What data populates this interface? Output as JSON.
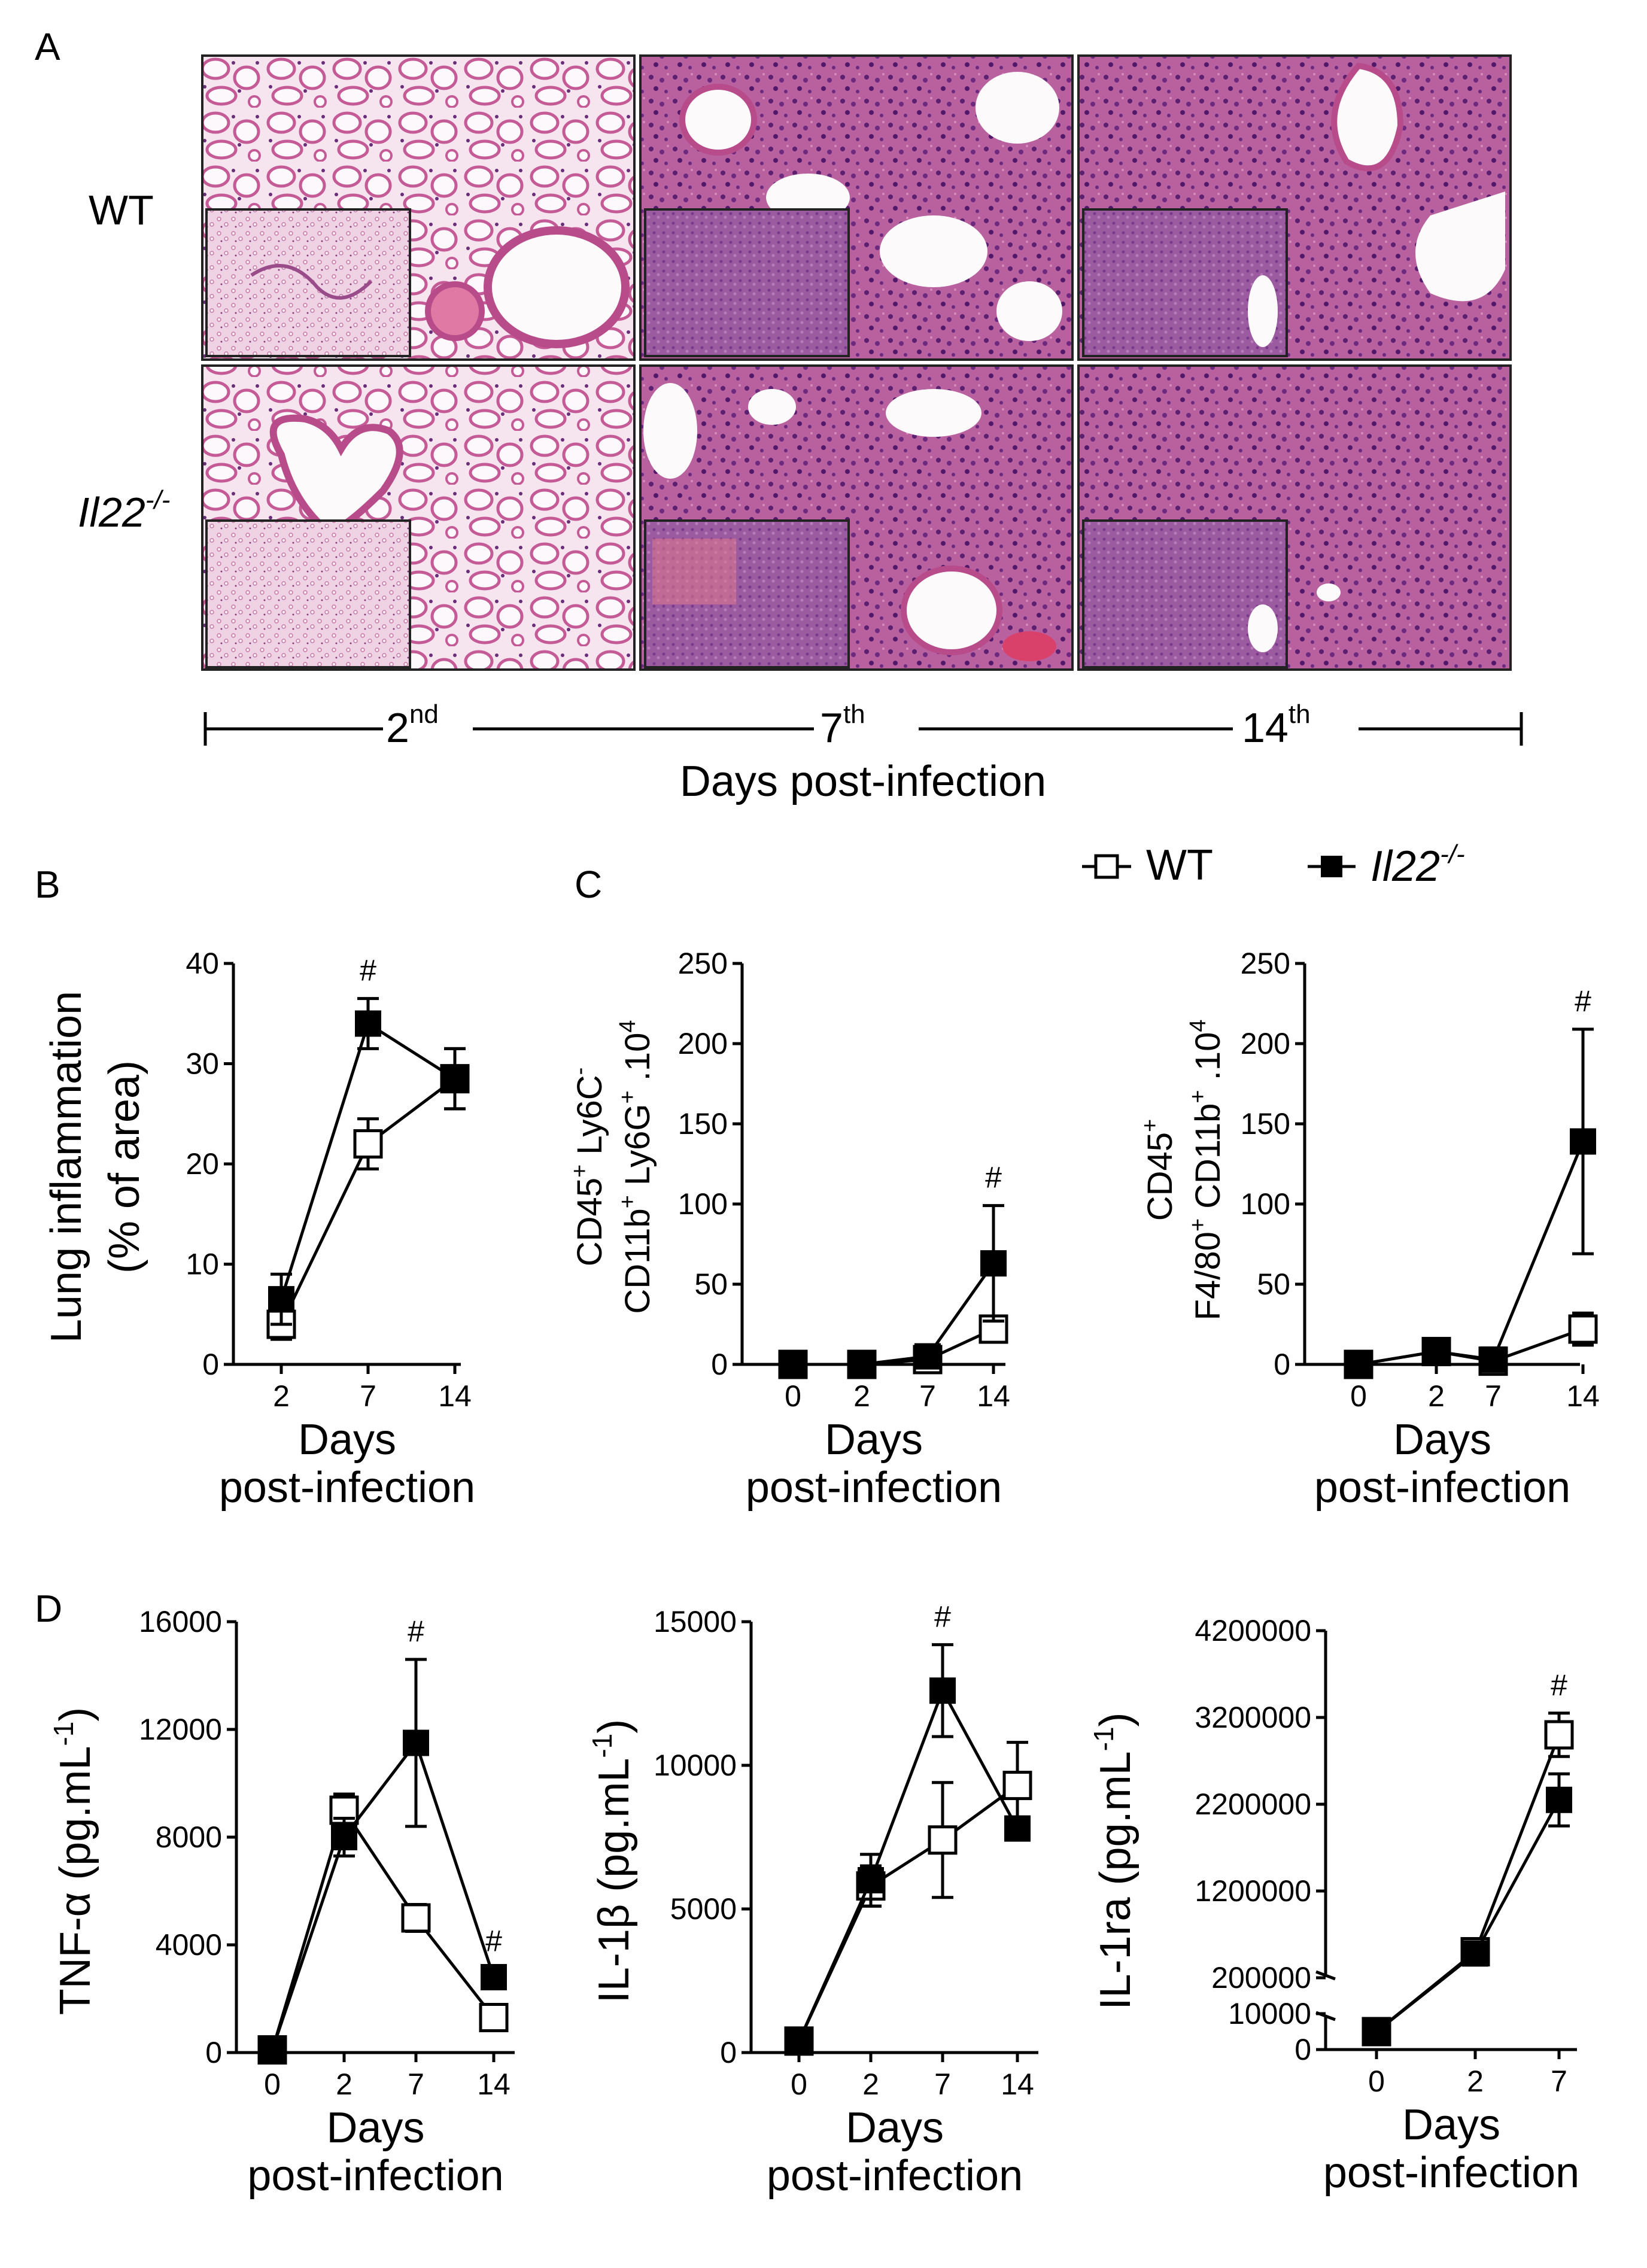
{
  "panel_a": {
    "label": "A",
    "rows": [
      "WT",
      "Il22-/-"
    ],
    "row_wt": "WT",
    "row_ko_base": "Il22",
    "row_ko_sup": "-/-",
    "timeline": [
      {
        "base": "2",
        "sup": "nd"
      },
      {
        "base": "7",
        "sup": "th"
      },
      {
        "base": "14",
        "sup": "th"
      }
    ],
    "timeline_title": "Days post-infection"
  },
  "legend": {
    "wt": "WT",
    "ko_base": "Il22",
    "ko_sup": "-/-"
  },
  "panel_labels": {
    "b": "B",
    "c": "C",
    "d": "D"
  },
  "xlabel_line1": "Days",
  "xlabel_line2": "post-infection",
  "colors": {
    "tissue_pink": "#e6a9c8",
    "tissue_purple": "#8b3f8a",
    "marker": "#000000"
  },
  "chart_data": [
    {
      "id": "b",
      "type": "line",
      "ylabel_line1": "Lung inflammation",
      "ylabel_line2": "(% of area)",
      "categories": [
        "2",
        "7",
        "14"
      ],
      "ylim": [
        0,
        40
      ],
      "yticks": [
        "0",
        "10",
        "20",
        "30",
        "40"
      ],
      "series": [
        {
          "name": "WT",
          "values": [
            4,
            22,
            28.5
          ],
          "errors": [
            1.5,
            2.5,
            3
          ]
        },
        {
          "name": "Il22-/-",
          "values": [
            6.5,
            34,
            28.5
          ],
          "errors": [
            2.5,
            2.5,
            3
          ]
        }
      ],
      "annotations": [
        {
          "text": "#",
          "category": "7"
        }
      ]
    },
    {
      "id": "c1",
      "type": "line",
      "ylabel_line1": "CD45+ Ly6C-",
      "ylabel_line2": "CD11b+ Ly6G+ .104",
      "categories": [
        "0",
        "2",
        "7",
        "14"
      ],
      "ylim": [
        0,
        250
      ],
      "yticks": [
        "0",
        "50",
        "100",
        "150",
        "200",
        "250"
      ],
      "series": [
        {
          "name": "WT",
          "values": [
            0,
            0,
            3,
            22
          ],
          "errors": [
            0,
            0,
            2,
            5
          ]
        },
        {
          "name": "Il22-/-",
          "values": [
            0,
            0,
            5,
            63
          ],
          "errors": [
            0,
            0,
            2,
            36
          ]
        }
      ],
      "annotations": [
        {
          "text": "#",
          "category": "14"
        }
      ]
    },
    {
      "id": "c2",
      "type": "line",
      "ylabel_line1": "CD45+",
      "ylabel_line2": "F4/80+ CD11b+ .104",
      "categories": [
        "0",
        "2",
        "7",
        "14"
      ],
      "ylim": [
        0,
        250
      ],
      "yticks": [
        "0",
        "50",
        "100",
        "150",
        "200",
        "250"
      ],
      "series": [
        {
          "name": "WT",
          "values": [
            0,
            8,
            2,
            22
          ],
          "errors": [
            0,
            2,
            3,
            10
          ]
        },
        {
          "name": "Il22-/-",
          "values": [
            0,
            8,
            3,
            139
          ],
          "errors": [
            0,
            2,
            2,
            70
          ]
        }
      ],
      "annotations": [
        {
          "text": "#",
          "category": "14"
        }
      ]
    },
    {
      "id": "d1",
      "type": "line",
      "ylabel": "TNF-α (pg.mL-1)",
      "categories": [
        "0",
        "2",
        "7",
        "14"
      ],
      "ylim": [
        0,
        16000
      ],
      "yticks": [
        "0",
        "4000",
        "8000",
        "12000",
        "16000"
      ],
      "series": [
        {
          "name": "WT",
          "values": [
            100,
            9000,
            5000,
            1300
          ],
          "errors": [
            100,
            600,
            500,
            250
          ]
        },
        {
          "name": "Il22-/-",
          "values": [
            100,
            8000,
            11500,
            2800
          ],
          "errors": [
            100,
            700,
            3100,
            300
          ]
        }
      ],
      "annotations": [
        {
          "text": "#",
          "category": "7"
        },
        {
          "text": "#",
          "category": "14"
        }
      ]
    },
    {
      "id": "d2",
      "type": "line",
      "ylabel": "IL-1β (pg.mL-1)",
      "categories": [
        "0",
        "2",
        "7",
        "14"
      ],
      "ylim": [
        0,
        15000
      ],
      "yticks": [
        "0",
        "5000",
        "10000",
        "15000"
      ],
      "series": [
        {
          "name": "WT",
          "values": [
            400,
            5800,
            7400,
            9300
          ],
          "errors": [
            300,
            700,
            2000,
            1500
          ]
        },
        {
          "name": "Il22-/-",
          "values": [
            400,
            6000,
            12600,
            7800
          ],
          "errors": [
            300,
            900,
            1600,
            400
          ]
        }
      ],
      "annotations": [
        {
          "text": "#",
          "category": "7"
        }
      ]
    },
    {
      "id": "d3",
      "type": "line",
      "ylabel": "IL-1ra (pg.mL-1)",
      "categories": [
        "0",
        "2",
        "7"
      ],
      "ylim": [
        0,
        4200000
      ],
      "yticks": [
        "0",
        "10000",
        "200000",
        "1200000",
        "2200000",
        "3200000",
        "4200000"
      ],
      "axis_break": [
        10000,
        200000
      ],
      "series": [
        {
          "name": "WT",
          "values": [
            5000,
            500000,
            3000000
          ],
          "errors": [
            0,
            50000,
            250000
          ]
        },
        {
          "name": "Il22-/-",
          "values": [
            5000,
            480000,
            2250000
          ],
          "errors": [
            0,
            50000,
            300000
          ]
        }
      ],
      "annotations": [
        {
          "text": "#",
          "category": "7"
        }
      ]
    }
  ]
}
